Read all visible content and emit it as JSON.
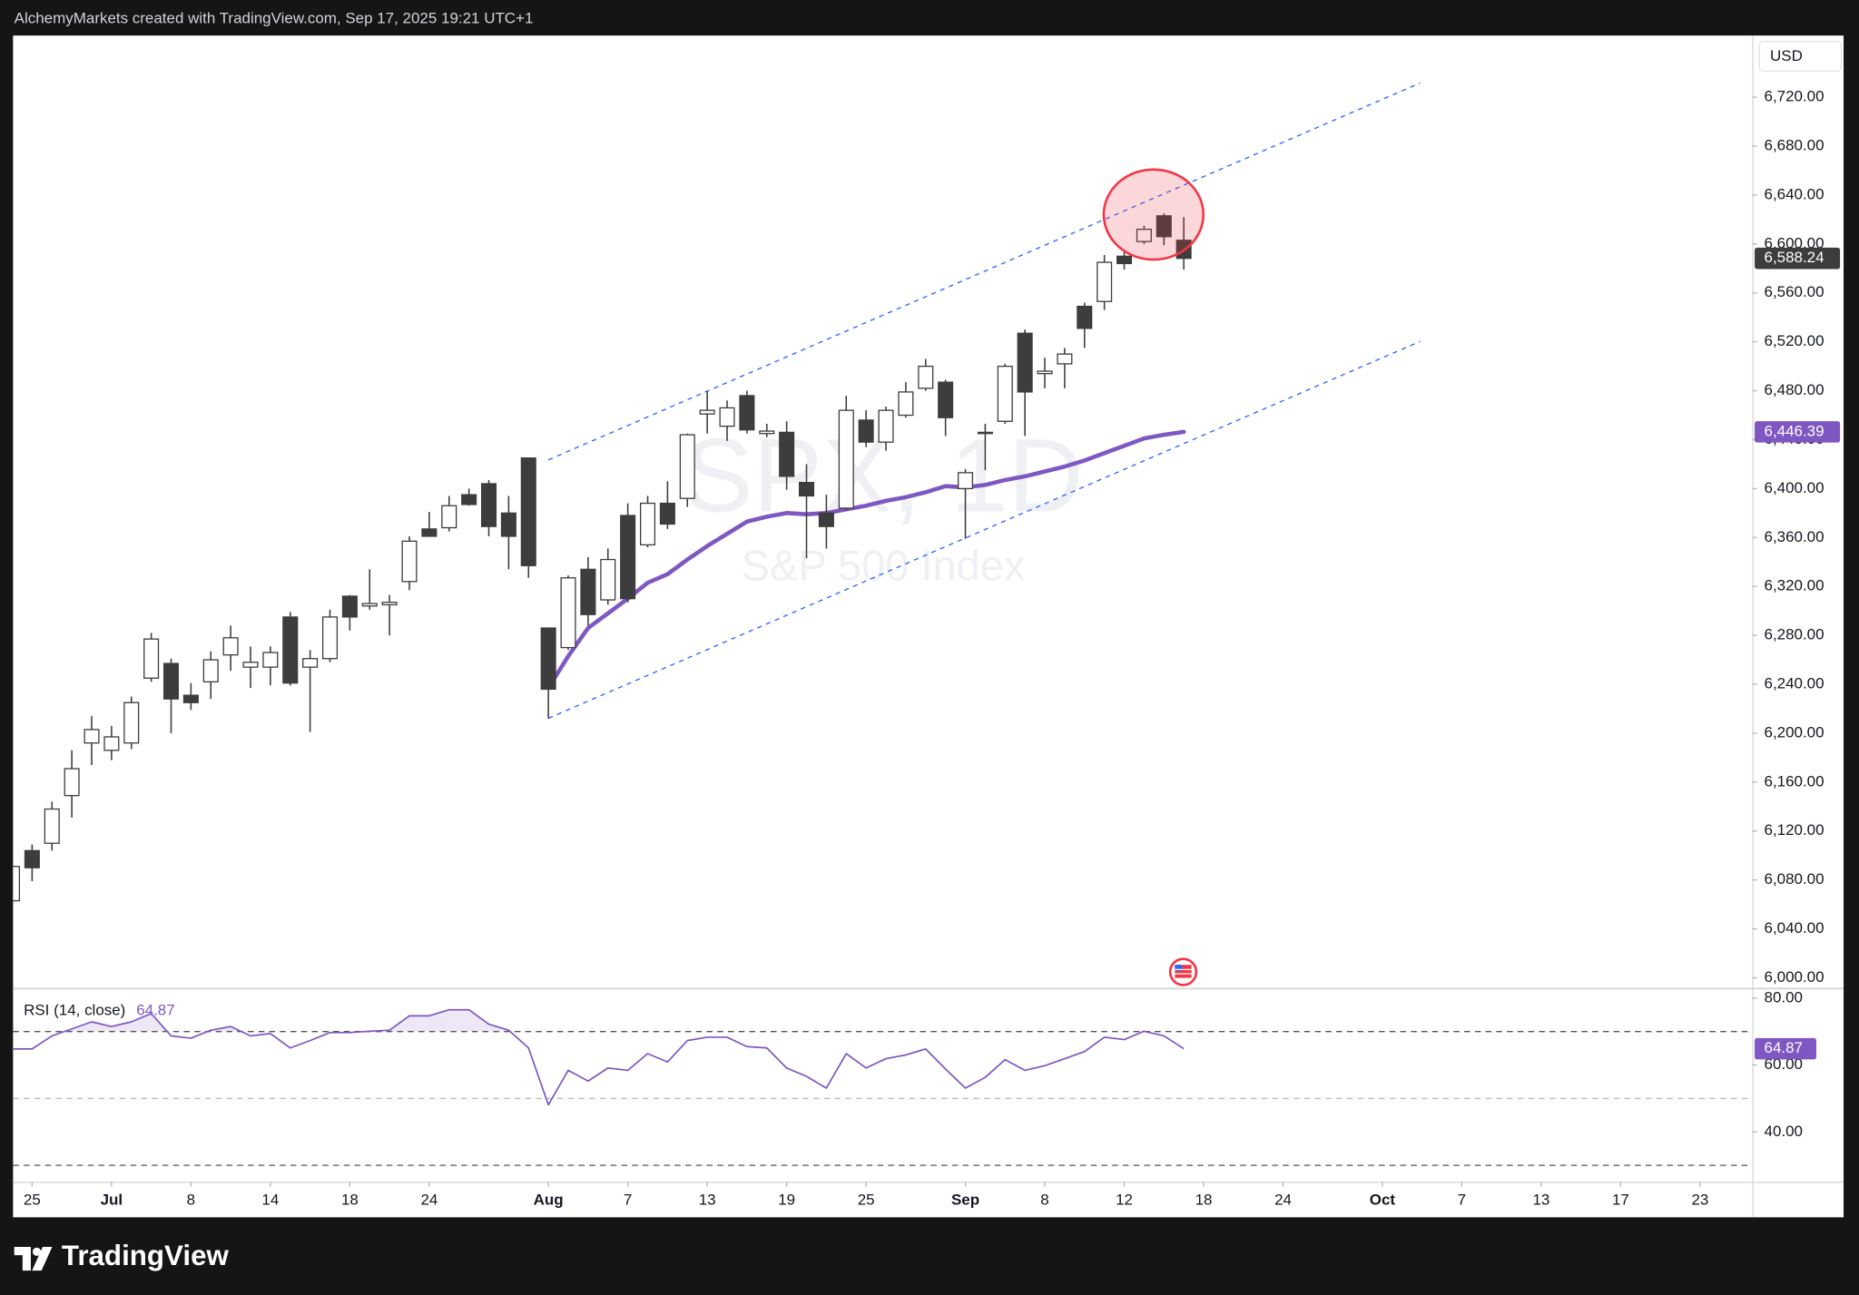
{
  "header": {
    "text": "AlchemyMarkets created with TradingView.com, Sep 17, 2025 19:21 UTC+1"
  },
  "footer": {
    "logo": "TradingView"
  },
  "chart_data": [
    {
      "type": "candlestick",
      "title": "SPX, 1D",
      "subtitle": "S&P 500 Index",
      "currency": "USD",
      "up_color": "#ffffff",
      "down_color": "#3d3d3d",
      "wick_color": "#3d3d3d",
      "x": [
        -1,
        0,
        1,
        2,
        3,
        4,
        5,
        6,
        7,
        8,
        9,
        10,
        11,
        12,
        13,
        14,
        15,
        16,
        17,
        18,
        19,
        20,
        21,
        22,
        23,
        24,
        25,
        26,
        27,
        28,
        29,
        30,
        31,
        32,
        33,
        34,
        35,
        36,
        37,
        38,
        39,
        40,
        41,
        42,
        43,
        44,
        45,
        46,
        47,
        48,
        49,
        50,
        51,
        52,
        53,
        54,
        55,
        56,
        57,
        58
      ],
      "open": [
        6063,
        6104,
        6110,
        6149,
        6192,
        6186,
        6192,
        6245,
        6257,
        6231,
        6242,
        6264,
        6254,
        6254,
        6295,
        6254,
        6261,
        6312,
        6304,
        6305,
        6324,
        6367,
        6368,
        6395,
        6404,
        6380,
        6425,
        6286,
        6270,
        6334,
        6309,
        6378,
        6354,
        6388,
        6392,
        6461,
        6451,
        6476,
        6445,
        6446,
        6405,
        6380,
        6384,
        6456,
        6438,
        6460,
        6482,
        6487,
        6400,
        6445,
        6455,
        6527,
        6494,
        6502,
        6549,
        6553,
        6590,
        6602,
        6623,
        6603
      ],
      "high": [
        6097,
        6109,
        6144,
        6186,
        6214,
        6206,
        6230,
        6282,
        6261,
        6241,
        6267,
        6288,
        6271,
        6271,
        6299,
        6268,
        6301,
        6313,
        6334,
        6313,
        6361,
        6381,
        6394,
        6400,
        6407,
        6394,
        6425,
        6286,
        6329,
        6344,
        6351,
        6388,
        6394,
        6406,
        6445,
        6480,
        6472,
        6480,
        6453,
        6455,
        6420,
        6395,
        6476,
        6464,
        6467,
        6487,
        6506,
        6489,
        6416,
        6453,
        6502,
        6530,
        6507,
        6515,
        6552,
        6591,
        6594,
        6615,
        6625,
        6622
      ],
      "low": [
        6063,
        6079,
        6104,
        6131,
        6174,
        6178,
        6187,
        6242,
        6200,
        6219,
        6228,
        6251,
        6237,
        6239,
        6239,
        6201,
        6258,
        6284,
        6301,
        6280,
        6317,
        6361,
        6365,
        6386,
        6361,
        6334,
        6327,
        6212,
        6268,
        6288,
        6305,
        6307,
        6352,
        6367,
        6385,
        6445,
        6439,
        6445,
        6442,
        6399,
        6343,
        6351,
        6382,
        6434,
        6431,
        6458,
        6480,
        6443,
        6359,
        6415,
        6453,
        6443,
        6482,
        6482,
        6515,
        6546,
        6579,
        6600,
        6599,
        6579
      ],
      "close": [
        6091,
        6090,
        6138,
        6171,
        6203,
        6197,
        6225,
        6277,
        6228,
        6225,
        6260,
        6278,
        6258,
        6266,
        6241,
        6261,
        6295,
        6295,
        6306,
        6307,
        6357,
        6361,
        6386,
        6387,
        6369,
        6361,
        6337,
        6236,
        6327,
        6297,
        6342,
        6310,
        6388,
        6371,
        6444,
        6464,
        6466,
        6448,
        6447,
        6410,
        6394,
        6369,
        6464,
        6438,
        6464,
        6479,
        6500,
        6458,
        6413,
        6446,
        6500,
        6479,
        6496,
        6510,
        6531,
        6585,
        6584,
        6612,
        6606,
        6588.24
      ],
      "last_close_label": "6,588.24",
      "moving_average": {
        "color": "#7e57c2",
        "x": [
          26,
          27,
          28,
          29,
          30,
          31,
          32,
          33,
          34,
          35,
          36,
          37,
          38,
          39,
          40,
          41,
          42,
          43,
          44,
          45,
          46,
          47,
          48,
          49,
          50,
          51,
          52,
          53,
          54,
          55,
          56,
          57,
          58
        ],
        "values": [
          6237,
          6263,
          6286,
          6298,
          6310,
          6323,
          6330,
          6342,
          6353,
          6363,
          6373,
          6377,
          6380,
          6379,
          6380,
          6383,
          6386,
          6390,
          6393,
          6397,
          6402,
          6401,
          6403,
          6407,
          6410,
          6414,
          6418,
          6423,
          6429,
          6435,
          6441,
          6444,
          6446.39
        ],
        "last_label": "6,446.39"
      },
      "trendlines": [
        {
          "color": "#2962ff",
          "x": [
            26,
            69.9
          ],
          "y": [
            6423.5,
            6731.6
          ]
        },
        {
          "color": "#2962ff",
          "x": [
            26,
            69.9
          ],
          "y": [
            6212.2,
            6520.3
          ]
        }
      ],
      "xlim": [
        -0.96,
        86.63
      ],
      "xticks": [
        {
          "value": 0,
          "label": "25"
        },
        {
          "value": 4,
          "label": "Jul"
        },
        {
          "value": 8,
          "label": "8"
        },
        {
          "value": 12,
          "label": "14"
        },
        {
          "value": 16,
          "label": "18"
        },
        {
          "value": 20,
          "label": "24"
        },
        {
          "value": 26,
          "label": "Aug"
        },
        {
          "value": 30,
          "label": "7"
        },
        {
          "value": 34,
          "label": "13"
        },
        {
          "value": 38,
          "label": "19"
        },
        {
          "value": 42,
          "label": "25"
        },
        {
          "value": 47,
          "label": "Sep"
        },
        {
          "value": 51,
          "label": "8"
        },
        {
          "value": 55,
          "label": "12"
        },
        {
          "value": 59,
          "label": "18"
        },
        {
          "value": 63,
          "label": "24"
        },
        {
          "value": 68,
          "label": "Oct"
        },
        {
          "value": 72,
          "label": "7"
        },
        {
          "value": 76,
          "label": "13"
        },
        {
          "value": 80,
          "label": "17"
        },
        {
          "value": 84,
          "label": "23"
        }
      ],
      "ylim": [
        5992.2,
        6770.4
      ],
      "yticks": [
        {
          "value": 6000,
          "label": "6,000.00"
        },
        {
          "value": 6040,
          "label": "6,040.00"
        },
        {
          "value": 6080,
          "label": "6,080.00"
        },
        {
          "value": 6120,
          "label": "6,120.00"
        },
        {
          "value": 6160,
          "label": "6,160.00"
        },
        {
          "value": 6200,
          "label": "6,200.00"
        },
        {
          "value": 6240,
          "label": "6,240.00"
        },
        {
          "value": 6280,
          "label": "6,280.00"
        },
        {
          "value": 6320,
          "label": "6,320.00"
        },
        {
          "value": 6360,
          "label": "6,360.00"
        },
        {
          "value": 6400,
          "label": "6,400.00"
        },
        {
          "value": 6440,
          "label": "6,440.00"
        },
        {
          "value": 6480,
          "label": "6,480.00"
        },
        {
          "value": 6520,
          "label": "6,520.00"
        },
        {
          "value": 6560,
          "label": "6,560.00"
        },
        {
          "value": 6600,
          "label": "6,600.00"
        },
        {
          "value": 6640,
          "label": "6,640.00"
        },
        {
          "value": 6680,
          "label": "6,680.00"
        },
        {
          "value": 6720,
          "label": "6,720.00"
        }
      ]
    },
    {
      "type": "line",
      "title": "RSI (14, close)",
      "color": "#7e57c2",
      "overbought_fill": "rgba(126,87,194,0.14)",
      "x": [
        -1,
        0,
        1,
        2,
        3,
        4,
        5,
        6,
        7,
        8,
        9,
        10,
        11,
        12,
        13,
        14,
        15,
        16,
        17,
        18,
        19,
        20,
        21,
        22,
        23,
        24,
        25,
        26,
        27,
        28,
        29,
        30,
        31,
        32,
        33,
        34,
        35,
        36,
        37,
        38,
        39,
        40,
        41,
        42,
        43,
        44,
        45,
        46,
        47,
        48,
        49,
        50,
        51,
        52,
        53,
        54,
        55,
        56,
        57,
        58
      ],
      "values": [
        64.8,
        64.8,
        68.7,
        70.8,
        72.9,
        71.5,
        72.9,
        75.4,
        68.7,
        68,
        70.4,
        71.5,
        68.7,
        69.4,
        65.1,
        67.3,
        69.7,
        69.7,
        70.1,
        70.4,
        74.7,
        74.7,
        76.5,
        76.5,
        72.2,
        70.4,
        65.1,
        48.1,
        58.4,
        55.2,
        59.1,
        58.4,
        63.4,
        60.9,
        67.3,
        68.3,
        68.3,
        65.5,
        65.1,
        59.1,
        56.6,
        53.1,
        63.4,
        59.1,
        61.9,
        63,
        64.8,
        58.8,
        53.1,
        56.3,
        61.6,
        58.4,
        59.8,
        61.9,
        64,
        68.3,
        67.6,
        70.1,
        68.7,
        64.87
      ],
      "hlines": [
        70,
        50,
        30
      ],
      "hline_colors": [
        "#555555",
        "#bbbbbb",
        "#555555"
      ],
      "xlim": [
        -0.96,
        86.63
      ],
      "ylim": [
        25.1,
        82.5
      ],
      "yticks": [
        {
          "value": 40,
          "label": "40.00"
        },
        {
          "value": 60,
          "label": "60.00"
        },
        {
          "value": 80,
          "label": "80.00"
        }
      ]
    }
  ]
}
